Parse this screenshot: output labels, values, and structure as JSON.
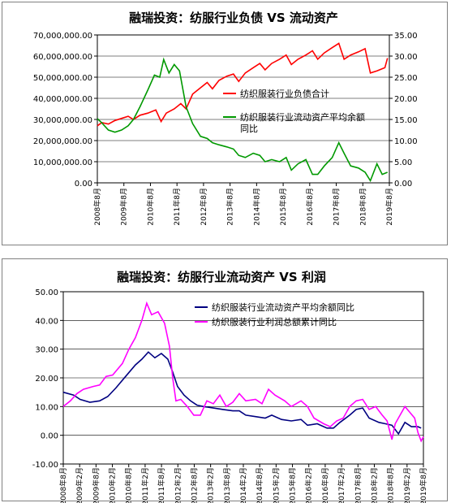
{
  "chart_data": [
    {
      "type": "line",
      "title": "融瑞投资：纺服行业负债 VS 流动资产",
      "y_left": {
        "ylim": [
          0,
          70000000
        ],
        "ticks": [
          "0.00",
          "10,000,000.00",
          "20,000,000.00",
          "30,000,000.00",
          "40,000,000.00",
          "50,000,000.00",
          "60,000,000.00",
          "70,000,000.00"
        ]
      },
      "y_right": {
        "ylim": [
          0,
          35
        ],
        "ticks": [
          "0.00",
          "5.00",
          "10.00",
          "15.00",
          "20.00",
          "25.00",
          "30.00",
          "35.00"
        ]
      },
      "x_ticks": [
        "2008年8月",
        "2009年8月",
        "2010年8月",
        "2011年8月",
        "2012年8月",
        "2013年8月",
        "2014年8月",
        "2015年8月",
        "2016年8月",
        "2017年8月",
        "2018年8月",
        "2019年8月"
      ],
      "x_range": [
        2008.58,
        2019.67
      ],
      "legend_position": "middle-right",
      "grid": "horizontal",
      "series": [
        {
          "name": "纺织服装行业负债合计",
          "color": "#ff0000",
          "axis": "left",
          "points": [
            [
              2008.58,
              27000000
            ],
            [
              2008.75,
              28500000
            ],
            [
              2009.0,
              27800000
            ],
            [
              2009.25,
              29500000
            ],
            [
              2009.5,
              30500000
            ],
            [
              2009.75,
              31500000
            ],
            [
              2009.95,
              30000000
            ],
            [
              2010.2,
              32000000
            ],
            [
              2010.5,
              33000000
            ],
            [
              2010.8,
              34500000
            ],
            [
              2011.0,
              29000000
            ],
            [
              2011.2,
              33000000
            ],
            [
              2011.5,
              35000000
            ],
            [
              2011.75,
              37500000
            ],
            [
              2011.95,
              35000000
            ],
            [
              2012.2,
              42000000
            ],
            [
              2012.5,
              45000000
            ],
            [
              2012.75,
              47500000
            ],
            [
              2012.95,
              44500000
            ],
            [
              2013.2,
              48500000
            ],
            [
              2013.5,
              50500000
            ],
            [
              2013.75,
              51500000
            ],
            [
              2013.95,
              48000000
            ],
            [
              2014.2,
              52000000
            ],
            [
              2014.5,
              54500000
            ],
            [
              2014.75,
              56500000
            ],
            [
              2014.95,
              53500000
            ],
            [
              2015.2,
              56500000
            ],
            [
              2015.5,
              58500000
            ],
            [
              2015.75,
              60500000
            ],
            [
              2015.95,
              56000000
            ],
            [
              2016.2,
              58500000
            ],
            [
              2016.5,
              60500000
            ],
            [
              2016.75,
              62500000
            ],
            [
              2016.95,
              58500000
            ],
            [
              2017.2,
              61500000
            ],
            [
              2017.5,
              64000000
            ],
            [
              2017.75,
              66000000
            ],
            [
              2017.95,
              58500000
            ],
            [
              2018.2,
              60500000
            ],
            [
              2018.5,
              62000000
            ],
            [
              2018.75,
              63500000
            ],
            [
              2018.95,
              52000000
            ],
            [
              2019.2,
              53000000
            ],
            [
              2019.5,
              54500000
            ],
            [
              2019.6,
              59000000
            ]
          ]
        },
        {
          "name": "纺织服装行业流动资产平均余额同比",
          "color": "#009900",
          "axis": "right",
          "points": [
            [
              2008.58,
              15.2
            ],
            [
              2008.75,
              14.2
            ],
            [
              2009.0,
              12.5
            ],
            [
              2009.25,
              12.0
            ],
            [
              2009.5,
              12.5
            ],
            [
              2009.75,
              13.5
            ],
            [
              2009.95,
              15.0
            ],
            [
              2010.2,
              18.0
            ],
            [
              2010.5,
              22.0
            ],
            [
              2010.75,
              25.5
            ],
            [
              2010.95,
              25.0
            ],
            [
              2011.1,
              29.2
            ],
            [
              2011.3,
              26.0
            ],
            [
              2011.5,
              28.0
            ],
            [
              2011.7,
              26.5
            ],
            [
              2011.95,
              18.0
            ],
            [
              2012.2,
              14.0
            ],
            [
              2012.5,
              11.0
            ],
            [
              2012.75,
              10.5
            ],
            [
              2012.95,
              9.5
            ],
            [
              2013.2,
              9.0
            ],
            [
              2013.5,
              8.5
            ],
            [
              2013.75,
              8.0
            ],
            [
              2013.95,
              6.5
            ],
            [
              2014.2,
              6.0
            ],
            [
              2014.5,
              7.0
            ],
            [
              2014.75,
              6.5
            ],
            [
              2014.95,
              5.0
            ],
            [
              2015.2,
              5.5
            ],
            [
              2015.5,
              5.0
            ],
            [
              2015.75,
              6.0
            ],
            [
              2015.95,
              3.0
            ],
            [
              2016.2,
              4.5
            ],
            [
              2016.5,
              5.5
            ],
            [
              2016.75,
              2.0
            ],
            [
              2016.95,
              2.0
            ],
            [
              2017.2,
              4.0
            ],
            [
              2017.5,
              6.0
            ],
            [
              2017.75,
              9.5
            ],
            [
              2017.95,
              7.0
            ],
            [
              2018.2,
              4.0
            ],
            [
              2018.5,
              3.5
            ],
            [
              2018.75,
              2.5
            ],
            [
              2018.95,
              0.5
            ],
            [
              2019.2,
              4.5
            ],
            [
              2019.4,
              2.0
            ],
            [
              2019.6,
              2.5
            ]
          ]
        }
      ]
    },
    {
      "type": "line",
      "title": "融瑞投资：纺服行业流动资产 VS 利润",
      "ylim": [
        -10,
        50
      ],
      "y_ticks": [
        "50.00",
        "40.00",
        "30.00",
        "20.00",
        "10.00",
        "0.00",
        "-10.00"
      ],
      "x_ticks": [
        "2008年8月",
        "2009年2月",
        "2009年8月",
        "2010年2月",
        "2010年8月",
        "2011年2月",
        "2011年8月",
        "2012年2月",
        "2012年8月",
        "2013年2月",
        "2013年8月",
        "2014年2月",
        "2014年8月",
        "2015年2月",
        "2015年8月",
        "2016年2月",
        "2016年8月",
        "2017年2月",
        "2017年8月",
        "2018年2月",
        "2018年8月",
        "2019年2月",
        "2019年8月"
      ],
      "x_range": [
        2008.58,
        2019.67
      ],
      "legend_position": "top-right",
      "grid": "horizontal",
      "series": [
        {
          "name": "纺织服装行业流动资产平均余额同比",
          "color": "#000080",
          "points": [
            [
              2008.58,
              15.0
            ],
            [
              2008.9,
              14.0
            ],
            [
              2009.1,
              12.5
            ],
            [
              2009.4,
              11.5
            ],
            [
              2009.7,
              12.0
            ],
            [
              2009.95,
              13.5
            ],
            [
              2010.2,
              16.5
            ],
            [
              2010.5,
              20.5
            ],
            [
              2010.8,
              24.5
            ],
            [
              2011.0,
              26.5
            ],
            [
              2011.2,
              29.0
            ],
            [
              2011.4,
              27.0
            ],
            [
              2011.6,
              28.5
            ],
            [
              2011.8,
              26.5
            ],
            [
              2011.95,
              22.0
            ],
            [
              2012.1,
              17.0
            ],
            [
              2012.3,
              14.0
            ],
            [
              2012.5,
              12.0
            ],
            [
              2012.7,
              10.5
            ],
            [
              2012.9,
              10.0
            ],
            [
              2013.2,
              9.5
            ],
            [
              2013.5,
              9.0
            ],
            [
              2013.8,
              8.5
            ],
            [
              2014.0,
              8.5
            ],
            [
              2014.2,
              7.0
            ],
            [
              2014.5,
              6.5
            ],
            [
              2014.8,
              6.0
            ],
            [
              2015.0,
              7.0
            ],
            [
              2015.3,
              5.5
            ],
            [
              2015.6,
              5.0
            ],
            [
              2015.9,
              5.5
            ],
            [
              2016.1,
              3.5
            ],
            [
              2016.4,
              4.0
            ],
            [
              2016.7,
              2.5
            ],
            [
              2016.9,
              2.5
            ],
            [
              2017.1,
              4.5
            ],
            [
              2017.4,
              7.0
            ],
            [
              2017.6,
              9.0
            ],
            [
              2017.8,
              9.5
            ],
            [
              2018.0,
              6.0
            ],
            [
              2018.3,
              4.5
            ],
            [
              2018.5,
              4.0
            ],
            [
              2018.7,
              3.5
            ],
            [
              2018.9,
              0.5
            ],
            [
              2019.1,
              4.5
            ],
            [
              2019.3,
              3.0
            ],
            [
              2019.5,
              3.0
            ],
            [
              2019.6,
              2.5
            ]
          ]
        },
        {
          "name": "纺织服装行业利润总额累计同比",
          "color": "#ff00ff",
          "points": [
            [
              2008.58,
              10.0
            ],
            [
              2008.8,
              12.0
            ],
            [
              2009.0,
              14.5
            ],
            [
              2009.2,
              16.0
            ],
            [
              2009.5,
              17.0
            ],
            [
              2009.7,
              17.5
            ],
            [
              2009.9,
              20.5
            ],
            [
              2010.1,
              21.0
            ],
            [
              2010.4,
              25.0
            ],
            [
              2010.6,
              30.0
            ],
            [
              2010.8,
              34.0
            ],
            [
              2011.0,
              40.0
            ],
            [
              2011.15,
              46.0
            ],
            [
              2011.3,
              42.0
            ],
            [
              2011.5,
              43.0
            ],
            [
              2011.7,
              39.0
            ],
            [
              2011.85,
              31.0
            ],
            [
              2011.95,
              20.0
            ],
            [
              2012.05,
              12.0
            ],
            [
              2012.2,
              12.5
            ],
            [
              2012.4,
              10.0
            ],
            [
              2012.6,
              7.0
            ],
            [
              2012.8,
              7.0
            ],
            [
              2013.0,
              12.0
            ],
            [
              2013.2,
              11.0
            ],
            [
              2013.4,
              14.0
            ],
            [
              2013.6,
              10.0
            ],
            [
              2013.8,
              11.5
            ],
            [
              2014.0,
              14.5
            ],
            [
              2014.2,
              12.0
            ],
            [
              2014.5,
              12.5
            ],
            [
              2014.7,
              11.0
            ],
            [
              2014.9,
              16.0
            ],
            [
              2015.1,
              14.0
            ],
            [
              2015.4,
              12.0
            ],
            [
              2015.6,
              10.0
            ],
            [
              2015.9,
              12.0
            ],
            [
              2016.1,
              10.0
            ],
            [
              2016.3,
              6.0
            ],
            [
              2016.6,
              4.0
            ],
            [
              2016.8,
              3.0
            ],
            [
              2017.0,
              5.0
            ],
            [
              2017.2,
              6.0
            ],
            [
              2017.4,
              10.0
            ],
            [
              2017.6,
              12.0
            ],
            [
              2017.8,
              12.5
            ],
            [
              2018.0,
              9.0
            ],
            [
              2018.2,
              10.0
            ],
            [
              2018.4,
              7.0
            ],
            [
              2018.55,
              5.0
            ],
            [
              2018.7,
              -1.5
            ],
            [
              2018.8,
              4.0
            ],
            [
              2018.95,
              7.0
            ],
            [
              2019.1,
              10.0
            ],
            [
              2019.25,
              8.0
            ],
            [
              2019.4,
              6.0
            ],
            [
              2019.5,
              1.0
            ],
            [
              2019.6,
              -2.0
            ],
            [
              2019.67,
              -0.5
            ]
          ]
        }
      ]
    }
  ]
}
